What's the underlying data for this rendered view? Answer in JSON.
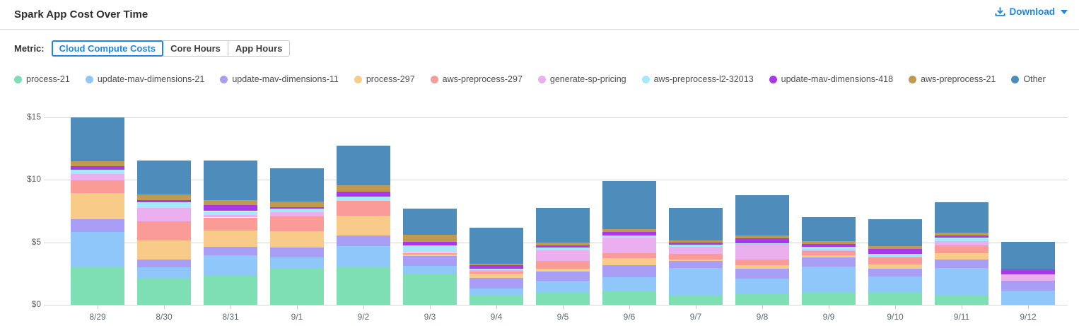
{
  "header": {
    "title": "Spark App Cost Over Time",
    "download_label": "Download"
  },
  "metric": {
    "label": "Metric:",
    "options": [
      "Cloud Compute Costs",
      "Core Hours",
      "App Hours"
    ],
    "selected": "Cloud Compute Costs"
  },
  "colors": {
    "accent_blue": "#1d86e8",
    "gridline": "#d6d6d6",
    "axis_text": "#666666"
  },
  "chart_data": {
    "type": "bar",
    "stacked": true,
    "title": "Spark App Cost Over Time",
    "xlabel": "",
    "ylabel": "Cloud Compute Costs ($)",
    "ylim": [
      0,
      15
    ],
    "yticks": [
      0,
      5,
      10,
      15
    ],
    "ytick_labels": [
      "$0",
      "$5",
      "$10",
      "$15"
    ],
    "grid": true,
    "legend_position": "top",
    "categories": [
      "8/29",
      "8/30",
      "8/31",
      "9/1",
      "9/2",
      "9/3",
      "9/4",
      "9/5",
      "9/6",
      "9/7",
      "9/8",
      "9/9",
      "9/10",
      "9/11",
      "9/12"
    ],
    "series": [
      {
        "name": "process-21",
        "color": "#7EDFB4",
        "values": [
          3.07,
          2.17,
          2.3,
          2.96,
          3.08,
          2.42,
          0.78,
          1.01,
          1.07,
          0.79,
          0.88,
          0.98,
          0.94,
          0.82,
          0.0
        ]
      },
      {
        "name": "update-mav-dimensions-21",
        "color": "#90C7FA",
        "values": [
          2.75,
          0.85,
          1.67,
          0.85,
          1.62,
          0.7,
          0.52,
          0.91,
          1.14,
          2.17,
          1.23,
          2.07,
          1.32,
          2.14,
          1.16
        ]
      },
      {
        "name": "update-mav-dimensions-11",
        "color": "#A99EF5",
        "values": [
          1.04,
          0.6,
          0.66,
          0.76,
          0.83,
          0.81,
          0.85,
          0.72,
          0.94,
          0.57,
          0.79,
          0.76,
          0.64,
          0.66,
          0.76
        ]
      },
      {
        "name": "process-297",
        "color": "#F8CC88",
        "values": [
          2.08,
          1.51,
          1.3,
          1.32,
          1.6,
          0.08,
          0.32,
          0.26,
          0.57,
          0.09,
          0.25,
          0.15,
          0.31,
          0.53,
          0.0
        ]
      },
      {
        "name": "aws-preprocess-297",
        "color": "#FB9B98",
        "values": [
          1.04,
          1.57,
          1.06,
          1.17,
          1.17,
          0.15,
          0.2,
          0.62,
          0.43,
          0.47,
          0.47,
          0.32,
          0.56,
          0.61,
          0.0
        ]
      },
      {
        "name": "generate-sp-pricing",
        "color": "#EBAEEE",
        "values": [
          0.47,
          1.08,
          0.19,
          0.34,
          0.0,
          0.08,
          0.11,
          0.85,
          1.21,
          0.57,
          1.23,
          0.13,
          0.1,
          0.34,
          0.53
        ]
      },
      {
        "name": "aws-preprocess-l2-32013",
        "color": "#A5E8FA",
        "values": [
          0.38,
          0.41,
          0.32,
          0.27,
          0.34,
          0.52,
          0.11,
          0.23,
          0.19,
          0.13,
          0.05,
          0.24,
          0.19,
          0.26,
          0.0
        ]
      },
      {
        "name": "update-mav-dimensions-418",
        "color": "#A938E9",
        "values": [
          0.25,
          0.21,
          0.47,
          0.15,
          0.43,
          0.25,
          0.29,
          0.15,
          0.3,
          0.19,
          0.43,
          0.23,
          0.42,
          0.19,
          0.38
        ]
      },
      {
        "name": "aws-preprocess-21",
        "color": "#C09A4F",
        "values": [
          0.43,
          0.42,
          0.43,
          0.43,
          0.47,
          0.62,
          0.12,
          0.23,
          0.23,
          0.19,
          0.19,
          0.23,
          0.19,
          0.25,
          0.0
        ]
      },
      {
        "name": "Other",
        "color": "#4D8CBB",
        "values": [
          3.49,
          2.71,
          3.13,
          2.67,
          3.19,
          2.09,
          2.87,
          2.76,
          3.82,
          2.57,
          3.24,
          1.91,
          2.16,
          2.4,
          2.21
        ]
      }
    ]
  }
}
